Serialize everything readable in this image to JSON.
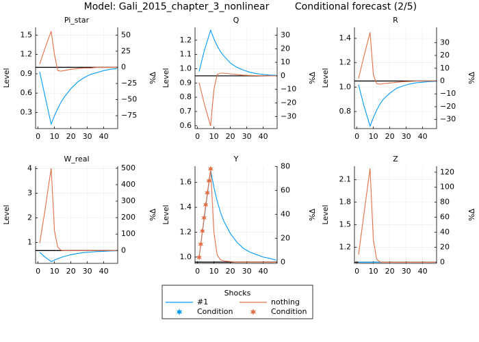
{
  "title": "Model: Gali_2015_chapter_3_nonlinear",
  "subtitle": "Conditional forecast  (2/5)",
  "legend": {
    "title": "Shocks",
    "entries": [
      {
        "name": "#1",
        "color": "#009AFA",
        "marker": "line"
      },
      {
        "name": "nothing",
        "color": "#E26F46",
        "marker": "line"
      },
      {
        "name": "Condition",
        "color": "#009AFA",
        "marker": "star"
      },
      {
        "name": "Condition",
        "color": "#E26F46",
        "marker": "star"
      }
    ]
  },
  "chart_data": [
    {
      "type": "line",
      "title": "Pi_star",
      "ylabel": "Level",
      "y2label": "%Δ",
      "grid": true,
      "x": [
        1,
        4,
        8,
        10,
        12,
        14,
        16,
        20,
        24,
        28,
        32,
        36,
        40,
        44,
        48
      ],
      "xlim": [
        -1.5,
        48.5
      ],
      "xticks": [
        0,
        10,
        20,
        30,
        40
      ],
      "ylim": [
        0.05,
        1.62
      ],
      "yticks": [
        0.3,
        0.6,
        0.9,
        1.2,
        1.5
      ],
      "y2lim": [
        -95,
        62
      ],
      "y2ticks": [
        {
          "value": -75,
          "label": "−75"
        },
        {
          "value": -50,
          "label": "−50"
        },
        {
          "value": -25,
          "label": "−25"
        },
        0,
        25,
        50
      ],
      "steady_state": 1.0,
      "series": [
        {
          "color": "#009AFA",
          "axis": "y",
          "values": [
            0.93,
            0.58,
            0.12,
            0.25,
            0.36,
            0.46,
            0.54,
            0.67,
            0.77,
            0.84,
            0.89,
            0.92,
            0.95,
            0.97,
            0.98
          ]
        },
        {
          "color": "#E26F46",
          "axis": "y2",
          "values": [
            5,
            28,
            56,
            20,
            -5,
            -6,
            -5,
            -3,
            -2,
            -1,
            -1,
            0,
            0,
            0,
            0
          ]
        }
      ]
    },
    {
      "type": "line",
      "title": "Q",
      "ylabel": "Level",
      "y2label": "%Δ",
      "grid": true,
      "x": [
        1,
        4,
        8,
        10,
        12,
        14,
        16,
        20,
        24,
        28,
        32,
        36,
        40,
        44,
        48
      ],
      "xlim": [
        -1.5,
        48.5
      ],
      "xticks": [
        0,
        10,
        20,
        30,
        40
      ],
      "ylim": [
        0.58,
        1.29
      ],
      "yticks": [
        0.6,
        0.7,
        0.8,
        0.9,
        {
          "value": 1,
          "label": "1.0"
        },
        1.1,
        1.2
      ],
      "y2lim": [
        -38.9,
        35.8
      ],
      "y2ticks": [
        {
          "value": -30,
          "label": "−30"
        },
        {
          "value": -20,
          "label": "−20"
        },
        {
          "value": -10,
          "label": "−10"
        },
        0,
        10,
        20,
        30
      ],
      "steady_state": 0.95,
      "series": [
        {
          "color": "#009AFA",
          "axis": "y",
          "values": [
            0.98,
            1.12,
            1.27,
            1.21,
            1.16,
            1.12,
            1.09,
            1.04,
            1.01,
            0.99,
            0.975,
            0.965,
            0.96,
            0.955,
            0.953
          ]
        },
        {
          "color": "#E26F46",
          "axis": "y2",
          "values": [
            -5,
            -20,
            -37,
            -10,
            1,
            2,
            2,
            1.5,
            1,
            0.5,
            0.3,
            0.2,
            0.1,
            0,
            0
          ]
        }
      ]
    },
    {
      "type": "line",
      "title": "R",
      "ylabel": "Level",
      "y2label": "%Δ",
      "grid": true,
      "x": [
        1,
        4,
        8,
        10,
        12,
        14,
        16,
        20,
        24,
        28,
        32,
        36,
        40,
        44,
        48
      ],
      "xlim": [
        -1.5,
        48.5
      ],
      "xticks": [
        0,
        10,
        20,
        30,
        40
      ],
      "ylim": [
        0.66,
        1.49
      ],
      "yticks": [
        0.8,
        {
          "value": 1,
          "label": "1.0"
        },
        1.2,
        1.4
      ],
      "y2lim": [
        -37.1,
        41.9
      ],
      "y2ticks": [
        {
          "value": -30,
          "label": "−30"
        },
        {
          "value": -20,
          "label": "−20"
        },
        {
          "value": -10,
          "label": "−10"
        },
        0,
        10,
        20,
        30
      ],
      "steady_state": 1.05,
      "series": [
        {
          "color": "#009AFA",
          "axis": "y",
          "values": [
            1.02,
            0.86,
            0.68,
            0.75,
            0.81,
            0.86,
            0.9,
            0.95,
            0.99,
            1.01,
            1.025,
            1.035,
            1.04,
            1.045,
            1.047
          ]
        },
        {
          "color": "#E26F46",
          "axis": "y2",
          "values": [
            2,
            18,
            38,
            5,
            -2,
            -2.5,
            -2,
            -1.5,
            -1,
            -0.5,
            -0.3,
            0,
            0,
            0,
            0
          ]
        }
      ]
    },
    {
      "type": "line",
      "title": "W_real",
      "ylabel": "Level",
      "y2label": "%Δ",
      "grid": true,
      "x": [
        1,
        4,
        8,
        10,
        12,
        14,
        16,
        20,
        24,
        28,
        32,
        36,
        40,
        44,
        48
      ],
      "xlim": [
        -1.5,
        48.5
      ],
      "xticks": [
        0,
        10,
        20,
        30,
        40
      ],
      "ylim": [
        0.15,
        4.1
      ],
      "yticks": [
        1,
        2,
        3,
        4
      ],
      "y2lim": [
        -77.6,
        512
      ],
      "y2ticks": [
        0,
        100,
        200,
        300,
        400,
        500
      ],
      "steady_state": 0.67,
      "series": [
        {
          "color": "#009AFA",
          "axis": "y",
          "values": [
            0.6,
            0.42,
            0.22,
            0.28,
            0.34,
            0.39,
            0.43,
            0.5,
            0.55,
            0.59,
            0.61,
            0.63,
            0.64,
            0.65,
            0.66
          ]
        },
        {
          "color": "#E26F46",
          "axis": "y2",
          "values": [
            45,
            230,
            500,
            120,
            20,
            2,
            0,
            0,
            0,
            0,
            0,
            0,
            0,
            0,
            0
          ]
        }
      ]
    },
    {
      "type": "line",
      "title": "Y",
      "ylabel": "Level",
      "y2label": "%Δ",
      "grid": true,
      "x": [
        1,
        4,
        8,
        10,
        12,
        14,
        16,
        20,
        24,
        28,
        32,
        36,
        40,
        44,
        48
      ],
      "xlim": [
        -1.5,
        48.5
      ],
      "xticks": [
        0,
        10,
        20,
        30,
        40
      ],
      "ylim": [
        0.95,
        1.73
      ],
      "yticks": [
        {
          "value": 1,
          "label": "1.0"
        },
        1.2,
        1.4,
        1.6
      ],
      "y2lim": [
        -1,
        80.2
      ],
      "y2ticks": [
        0,
        20,
        40,
        60,
        80
      ],
      "steady_state": 0.96,
      "series": [
        {
          "color": "#009AFA",
          "axis": "y",
          "values": [
            1.0,
            1.3,
            1.7,
            1.56,
            1.45,
            1.36,
            1.29,
            1.19,
            1.12,
            1.07,
            1.04,
            1.02,
            1.0,
            0.99,
            0.975
          ]
        },
        {
          "color": "#E26F46",
          "axis": "y2",
          "values": [
            4,
            37,
            78,
            25,
            6,
            2,
            1,
            0.5,
            0,
            0,
            0,
            0,
            0,
            0,
            0
          ]
        },
        {
          "color": "#E26F46",
          "axis": "y2",
          "marker": "star",
          "x": [
            1,
            2,
            3,
            4,
            5,
            6,
            7,
            8
          ],
          "values": [
            4,
            15,
            26,
            37,
            48,
            58,
            68,
            78
          ]
        }
      ]
    },
    {
      "type": "line",
      "title": "Z",
      "ylabel": "Level",
      "y2label": "%Δ",
      "grid": true,
      "x": [
        1,
        4,
        8,
        10,
        12,
        14,
        16,
        20,
        24,
        28,
        32,
        36,
        40,
        44,
        48
      ],
      "xlim": [
        -1.5,
        48.5
      ],
      "xticks": [
        0,
        10,
        20,
        30,
        40
      ],
      "ylim": [
        0.985,
        2.28
      ],
      "yticks": [
        1.2,
        1.5,
        1.8,
        2.1
      ],
      "y2lim": [
        -1.5,
        128
      ],
      "y2ticks": [
        0,
        20,
        40,
        60,
        80,
        100,
        120
      ],
      "steady_state": 1.0,
      "series": [
        {
          "color": "#009AFA",
          "axis": "y",
          "values": [
            1,
            1,
            1,
            1,
            1,
            1,
            1,
            1,
            1,
            1,
            1,
            1,
            1,
            1,
            1
          ]
        },
        {
          "color": "#E26F46",
          "axis": "y2",
          "values": [
            10,
            60,
            125,
            30,
            4,
            0.5,
            0,
            0,
            0,
            0,
            0,
            0,
            0,
            0,
            0
          ]
        }
      ]
    }
  ]
}
